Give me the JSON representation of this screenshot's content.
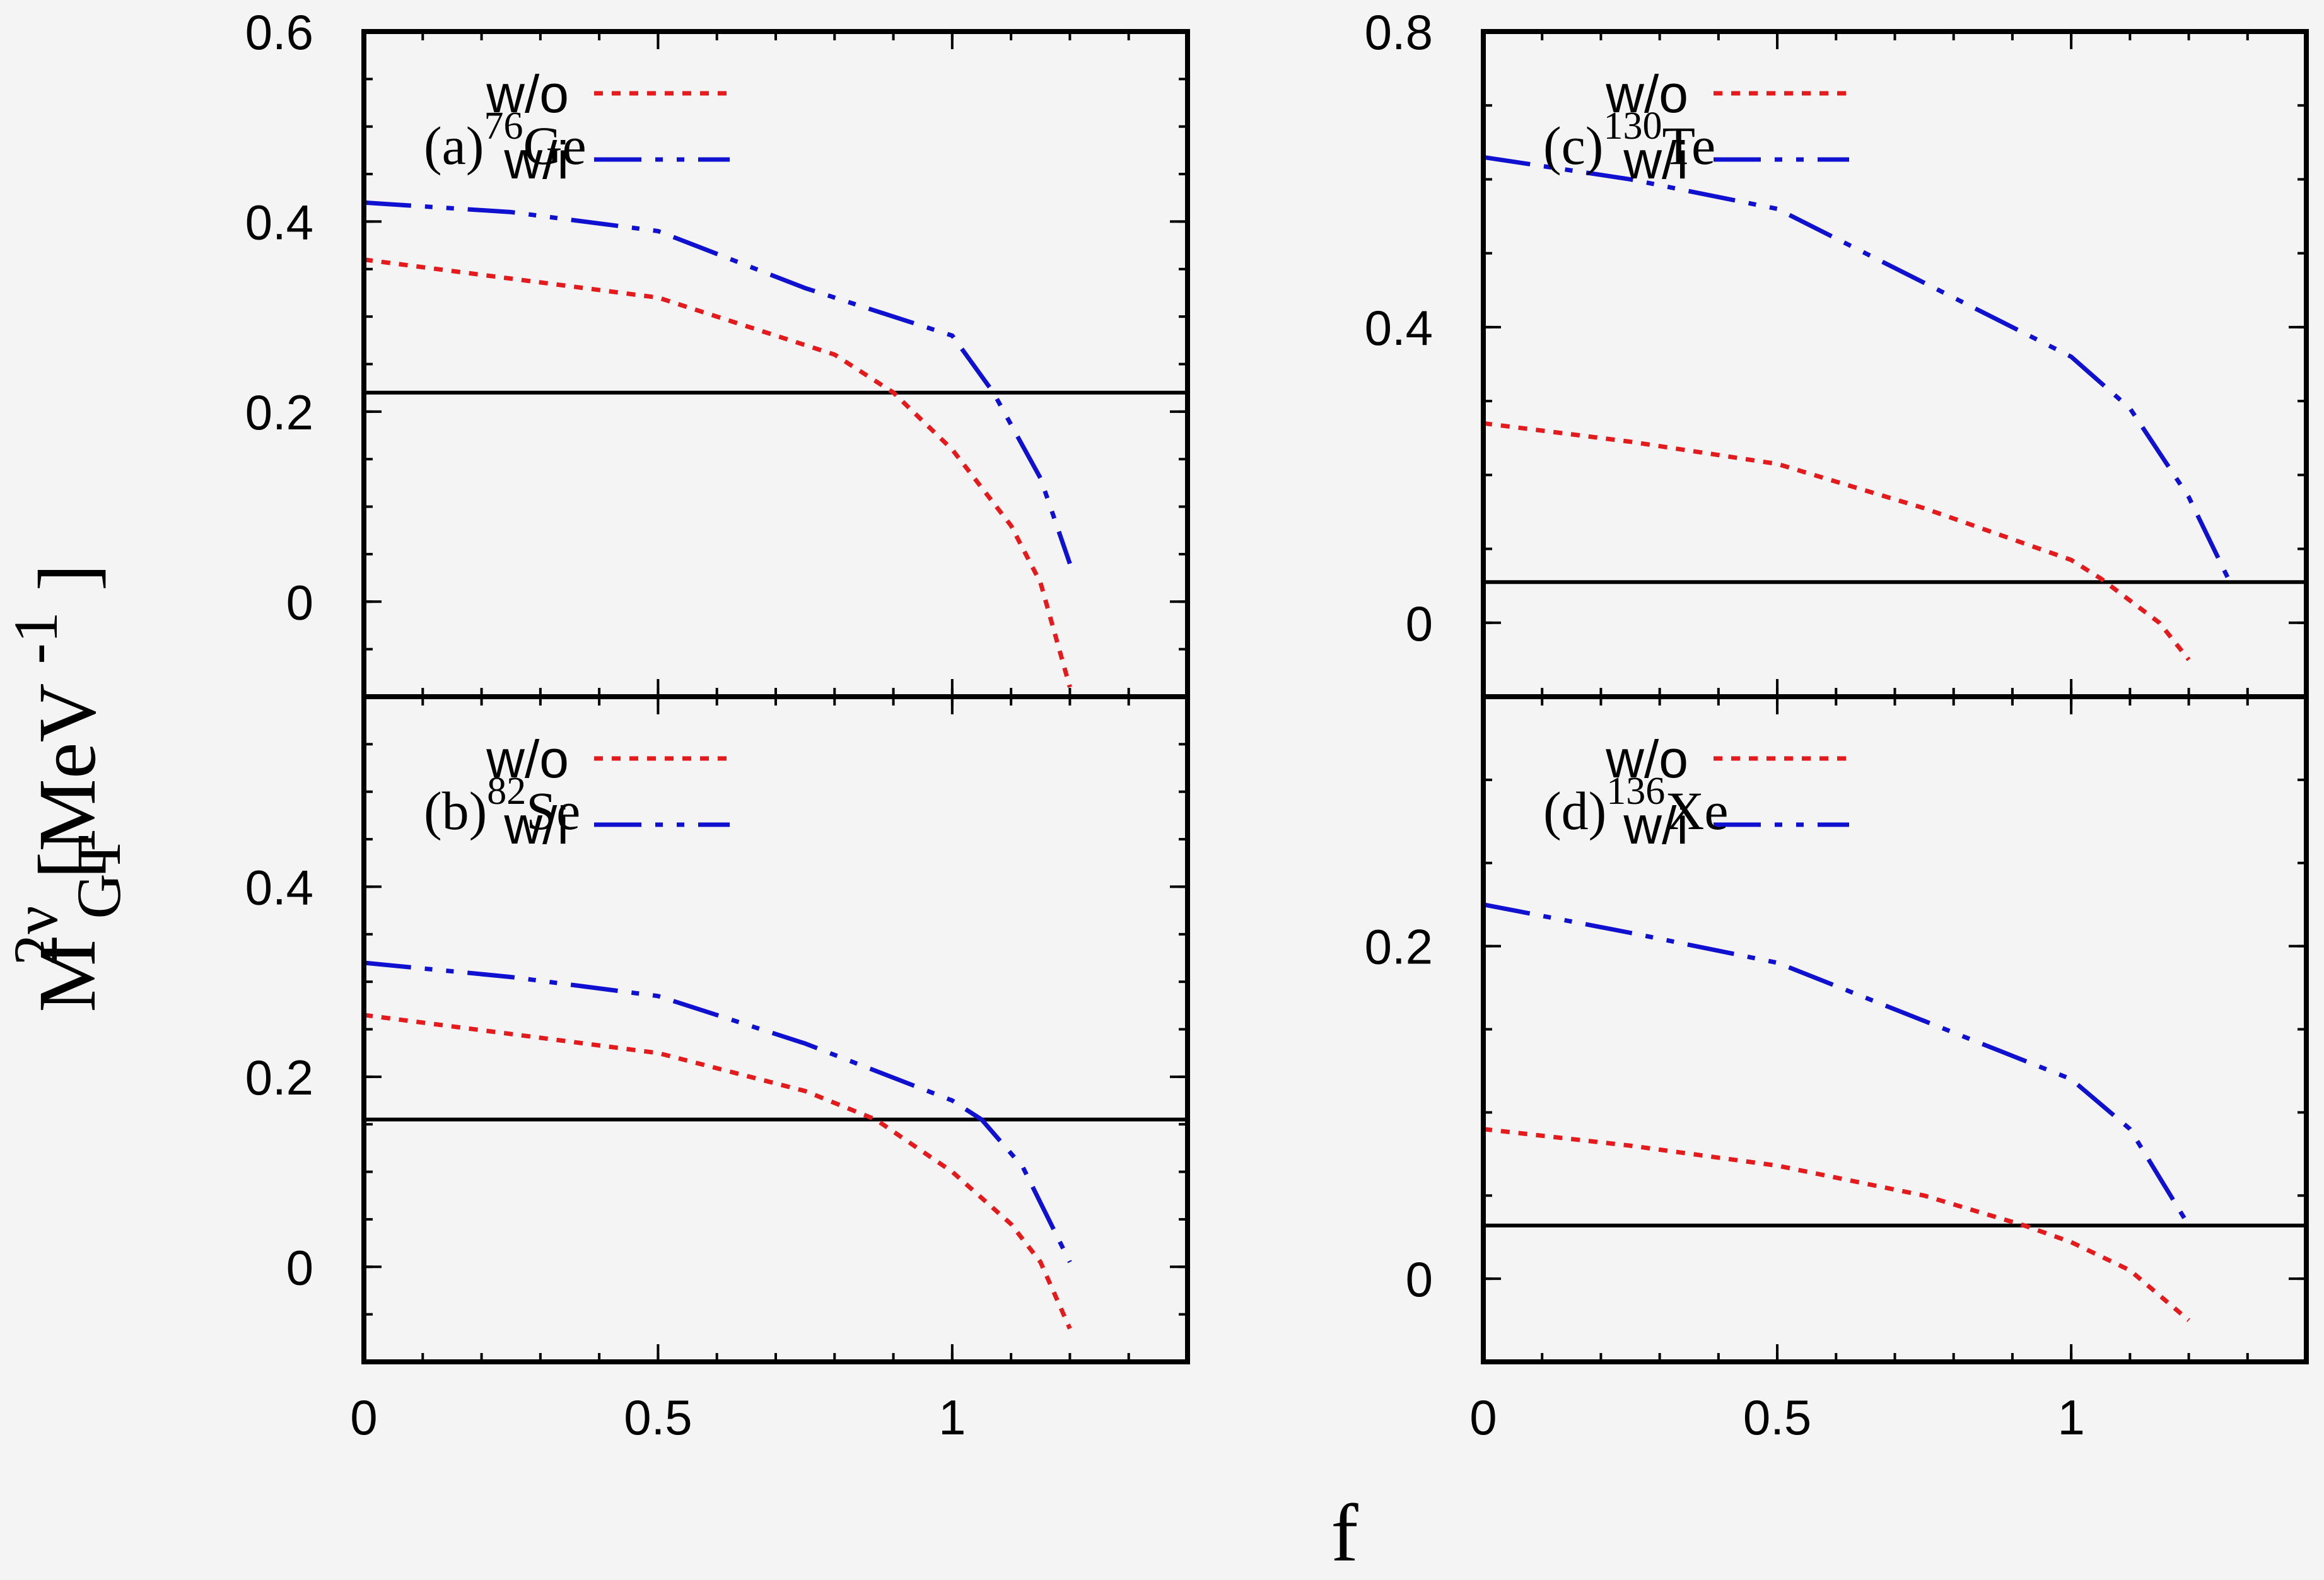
{
  "figure": {
    "xlabel": "f",
    "ylabel": {
      "base": "M",
      "sup": "2ν",
      "sub": "GT",
      "unit_pre": "[MeV",
      "unit_sup": "-1",
      "unit_post": "]"
    }
  },
  "chart_data": [
    {
      "type": "line",
      "panel_label": {
        "pre": "(a)",
        "sup": "76",
        "post": "Ge"
      },
      "xlim": [
        0,
        1.4
      ],
      "ylim": [
        -0.1,
        0.6
      ],
      "x_ticks": [
        "0",
        "0.5",
        "1"
      ],
      "x_tick_values": [
        0,
        0.5,
        1
      ],
      "y_ticks": [
        "0",
        "0.2",
        "0.4",
        "0.6"
      ],
      "y_tick_values": [
        0,
        0.2,
        0.4,
        0.6
      ],
      "legend_position": "top-right",
      "reference_line": 0.22,
      "series": [
        {
          "name": "w/o",
          "color": "#e41a1c",
          "dash": "dotted",
          "x": [
            0,
            0.25,
            0.5,
            0.8,
            0.9,
            1.0,
            1.1,
            1.15,
            1.2
          ],
          "y": [
            0.36,
            0.34,
            0.32,
            0.26,
            0.22,
            0.16,
            0.08,
            0.02,
            -0.09
          ]
        },
        {
          "name": "w/i",
          "color": "#1010d0",
          "dash": "dashdotdot",
          "x": [
            0,
            0.25,
            0.5,
            0.75,
            1.0,
            1.07,
            1.15,
            1.2
          ],
          "y": [
            0.42,
            0.41,
            0.39,
            0.33,
            0.28,
            0.22,
            0.13,
            0.04
          ]
        }
      ]
    },
    {
      "type": "line",
      "panel_label": {
        "pre": "(b)",
        "sup": "82",
        "post": "Se"
      },
      "xlim": [
        0,
        1.4
      ],
      "ylim": [
        -0.1,
        0.6
      ],
      "x_ticks": [
        "0",
        "0.5",
        "1"
      ],
      "x_tick_values": [
        0,
        0.5,
        1
      ],
      "y_ticks": [
        "0",
        "0.2",
        "0.4"
      ],
      "y_tick_values": [
        0,
        0.2,
        0.4
      ],
      "legend_position": "top-right",
      "reference_line": 0.155,
      "series": [
        {
          "name": "w/o",
          "color": "#e41a1c",
          "dash": "dotted",
          "x": [
            0,
            0.25,
            0.5,
            0.75,
            0.87,
            1.0,
            1.1,
            1.15,
            1.2
          ],
          "y": [
            0.265,
            0.245,
            0.225,
            0.185,
            0.155,
            0.1,
            0.045,
            0.005,
            -0.065
          ]
        },
        {
          "name": "w/i",
          "color": "#1010d0",
          "dash": "dashdotdot",
          "x": [
            0,
            0.25,
            0.5,
            0.75,
            1.0,
            1.05,
            1.12,
            1.2
          ],
          "y": [
            0.32,
            0.305,
            0.285,
            0.235,
            0.175,
            0.155,
            0.105,
            0.005
          ]
        }
      ]
    },
    {
      "type": "line",
      "panel_label": {
        "pre": "(c)",
        "sup": "130",
        "post": "Te"
      },
      "xlim": [
        0,
        1.4
      ],
      "ylim": [
        -0.1,
        0.8
      ],
      "x_ticks": [
        "0",
        "0.5",
        "1"
      ],
      "x_tick_values": [
        0,
        0.5,
        1
      ],
      "y_ticks": [
        "0",
        "0.4",
        "0.8"
      ],
      "y_tick_values": [
        0,
        0.4,
        0.8
      ],
      "legend_position": "top-right",
      "reference_line": 0.055,
      "series": [
        {
          "name": "w/o",
          "color": "#e41a1c",
          "dash": "dotted",
          "x": [
            0,
            0.25,
            0.5,
            0.75,
            1.0,
            1.05,
            1.1,
            1.15,
            1.2
          ],
          "y": [
            0.27,
            0.245,
            0.215,
            0.155,
            0.085,
            0.06,
            0.03,
            0.0,
            -0.05
          ]
        },
        {
          "name": "w/i",
          "color": "#1010d0",
          "dash": "dashdotdot",
          "x": [
            0,
            0.25,
            0.5,
            0.75,
            1.0,
            1.1,
            1.2,
            1.27
          ],
          "y": [
            0.63,
            0.6,
            0.56,
            0.46,
            0.36,
            0.29,
            0.17,
            0.055
          ]
        }
      ]
    },
    {
      "type": "line",
      "panel_label": {
        "pre": "(d)",
        "sup": "136",
        "post": "Xe"
      },
      "xlim": [
        0,
        1.4
      ],
      "ylim": [
        -0.05,
        0.35
      ],
      "x_ticks": [
        "0",
        "0.5",
        "1"
      ],
      "x_tick_values": [
        0,
        0.5,
        1
      ],
      "y_ticks": [
        "0",
        "0.2"
      ],
      "y_tick_values": [
        0,
        0.2
      ],
      "legend_position": "top-right",
      "reference_line": 0.032,
      "series": [
        {
          "name": "w/o",
          "color": "#e41a1c",
          "dash": "dotted",
          "x": [
            0,
            0.25,
            0.5,
            0.75,
            0.92,
            1.0,
            1.1,
            1.2
          ],
          "y": [
            0.09,
            0.08,
            0.068,
            0.05,
            0.032,
            0.022,
            0.005,
            -0.025
          ]
        },
        {
          "name": "w/i",
          "color": "#1010d0",
          "dash": "dashdotdot",
          "x": [
            0,
            0.25,
            0.5,
            0.75,
            1.0,
            1.1,
            1.2
          ],
          "y": [
            0.225,
            0.208,
            0.19,
            0.155,
            0.12,
            0.09,
            0.032
          ]
        }
      ]
    }
  ]
}
